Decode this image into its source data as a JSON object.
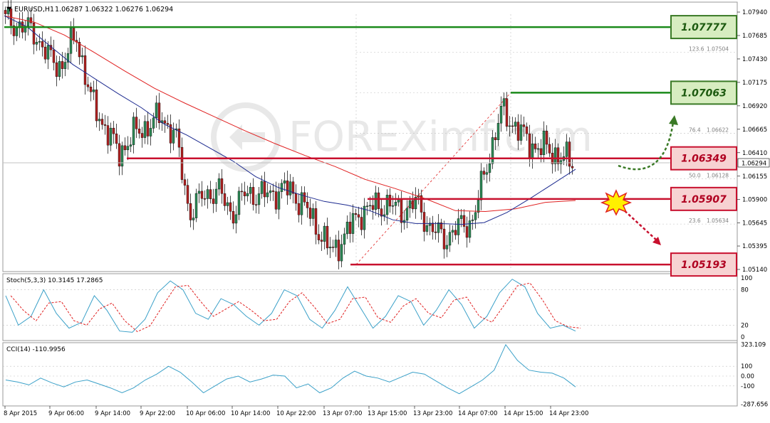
{
  "header": {
    "symbol": "EURUSD,H1",
    "ohlc": "1.06287 1.06322 1.06276 1.06294"
  },
  "watermark": "FOREXimf.com",
  "colors": {
    "background": "#ffffff",
    "grid": "#c0c0c0",
    "bull_candle": "#2e8b57",
    "bear_candle": "#b22222",
    "ma_fast": "#1c2a8f",
    "ma_slow": "#e02020",
    "resistance_line": "#1a8a1a",
    "support_line": "#c8102e",
    "resistance_box_fill": "#d7edc0",
    "support_box_fill": "#f7d2d2",
    "stoch_main": "#3aa0c8",
    "stoch_signal": "#e02020",
    "cci_line": "#3aa0c8",
    "axis_text": "#000000",
    "fib_text": "#808080"
  },
  "price_axis": {
    "ticks": [
      "1.07940",
      "1.07685",
      "1.07430",
      "1.07175",
      "1.06920",
      "1.06665",
      "1.06410",
      "1.06155",
      "1.05900",
      "1.05645",
      "1.05395",
      "1.05140"
    ],
    "current_price": "1.06294"
  },
  "levels": {
    "resistance": [
      {
        "label": "1.07777",
        "price": 1.07777
      },
      {
        "label": "1.07063",
        "price": 1.07063
      }
    ],
    "support": [
      {
        "label": "1.06349",
        "price": 1.06349
      },
      {
        "label": "1.05907",
        "price": 1.05907
      },
      {
        "label": "1.05193",
        "price": 1.05193
      }
    ]
  },
  "fibonacci": [
    {
      "ratio": "123.6",
      "price_label": "1.07504",
      "price": 1.07504
    },
    {
      "ratio": "76.4",
      "price_label": "1.06622",
      "price": 1.06622
    },
    {
      "ratio": "50.0",
      "price_label": "1.06128",
      "price": 1.06128
    },
    {
      "ratio": "23.6",
      "price_label": "1.05634",
      "price": 1.05634
    }
  ],
  "time_axis": {
    "labels": [
      "8 Apr 2015",
      "9 Apr 06:00",
      "9 Apr 14:00",
      "9 Apr 22:00",
      "10 Apr 06:00",
      "10 Apr 14:00",
      "10 Apr 22:00",
      "13 Apr 07:00",
      "13 Apr 15:00",
      "13 Apr 23:00",
      "14 Apr 07:00",
      "14 Apr 15:00",
      "14 Apr 23:00"
    ]
  },
  "stoch": {
    "title": "Stoch(5,3,3) 10.3145 17.2865",
    "levels": [
      "100",
      "80",
      "20",
      "0"
    ]
  },
  "cci": {
    "title": "CCI(14) -110.9956",
    "levels": [
      "323.109",
      "100",
      "0.00",
      "-100",
      "-287.656"
    ]
  },
  "chart_data": {
    "type": "candlestick",
    "symbol": "EURUSD",
    "timeframe": "H1",
    "title": "EURUSD,H1",
    "ylim": [
      1.0508,
      1.08
    ],
    "x_labels": [
      "8 Apr 2015",
      "9 Apr 06:00",
      "9 Apr 14:00",
      "9 Apr 22:00",
      "10 Apr 06:00",
      "10 Apr 14:00",
      "10 Apr 22:00",
      "13 Apr 07:00",
      "13 Apr 15:00",
      "13 Apr 23:00",
      "14 Apr 07:00",
      "14 Apr 15:00",
      "14 Apr 23:00"
    ],
    "close_path": [
      1.0785,
      1.0779,
      1.0773,
      1.0745,
      1.0735,
      1.077,
      1.07,
      1.067,
      1.064,
      1.066,
      1.067,
      1.068,
      1.066,
      1.0575,
      1.0595,
      1.06,
      1.0575,
      1.0598,
      1.0594,
      1.0598,
      1.0602,
      1.0585,
      1.056,
      1.0532,
      1.0552,
      1.0576,
      1.0582,
      1.0585,
      1.0577,
      1.0587,
      1.0558,
      1.0548,
      1.056,
      1.0568,
      1.063,
      1.0686,
      1.067,
      1.065,
      1.0646,
      1.0638,
      1.0629
    ],
    "series": [
      {
        "name": "MA fast",
        "values": [
          1.079,
          1.0778,
          1.0757,
          1.0737,
          1.0721,
          1.0705,
          1.069,
          1.0672,
          1.066,
          1.0646,
          1.0632,
          1.0615,
          1.0603,
          1.0595,
          1.0588,
          1.0584,
          1.0578,
          1.0568,
          1.0564,
          1.0564,
          1.0563,
          1.0565,
          1.0576,
          1.0591,
          1.0607,
          1.0623
        ]
      },
      {
        "name": "MA slow",
        "values": [
          1.079,
          1.0783,
          1.0769,
          1.075,
          1.073,
          1.0711,
          1.0695,
          1.068,
          1.0665,
          1.0651,
          1.0638,
          1.0626,
          1.0612,
          1.0602,
          1.0591,
          1.0578,
          1.0577,
          1.058,
          1.0587,
          1.0589
        ]
      }
    ],
    "indicators": {
      "stoch": {
        "main": 10.3145,
        "signal": 17.2865
      },
      "cci": -110.9956
    }
  }
}
